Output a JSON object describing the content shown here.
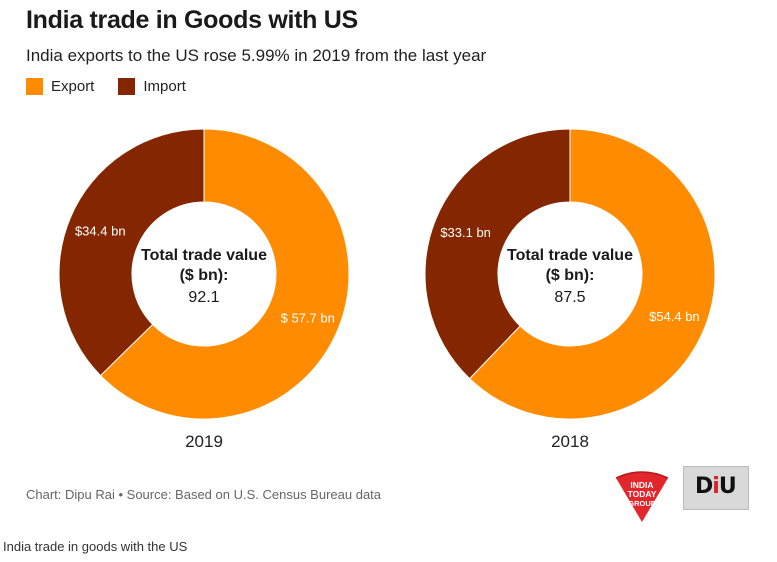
{
  "chart_data": {
    "type": "pie",
    "title": "India trade in Goods with US",
    "subtitle": "India exports to the US rose 5.99% in 2019 from the last year",
    "legend": [
      {
        "label": "Export",
        "color": "#ff8c00"
      },
      {
        "label": "Import",
        "color": "#842700"
      }
    ],
    "center_label": "Total trade value ($ bn):",
    "center_label_lines": [
      "Total trade value",
      "($ bn):"
    ],
    "charts": [
      {
        "year": "2019",
        "total": "92.1",
        "slices": [
          {
            "name": "Export",
            "value": 57.7,
            "label": "$ 57.7 bn"
          },
          {
            "name": "Import",
            "value": 34.4,
            "label": "$34.4 bn"
          }
        ]
      },
      {
        "year": "2018",
        "total": "87.5",
        "slices": [
          {
            "name": "Export",
            "value": 54.4,
            "label": "$54.4 bn"
          },
          {
            "name": "Import",
            "value": 33.1,
            "label": "$33.1 bn"
          }
        ]
      }
    ]
  },
  "colors": {
    "export": "#ff8c00",
    "import": "#842700"
  },
  "source": "Chart: Dipu Rai • Source: Based on U.S. Census Bureau data",
  "caption": "India trade in goods with the US",
  "logos": {
    "india_today": [
      "INDIA",
      "TODAY",
      "GROUP"
    ],
    "diu": {
      "d": "D",
      "i": "i",
      "u": "U"
    }
  }
}
